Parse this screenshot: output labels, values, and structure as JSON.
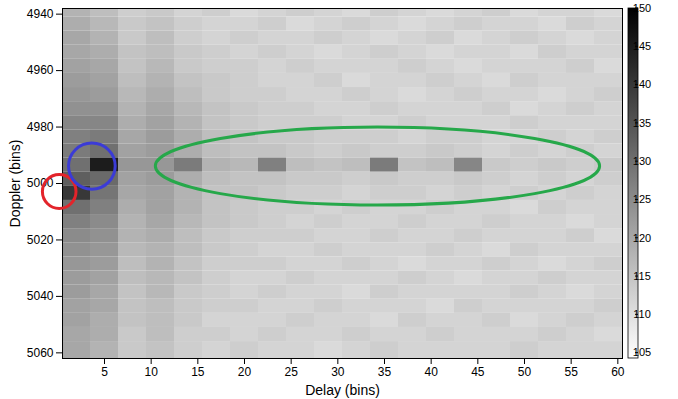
{
  "chart_data": {
    "type": "heatmap",
    "x_label": "Delay (bins)",
    "y_label": "Doppler (bins)",
    "xlim": [
      0.5,
      60.5
    ],
    "xticks": [
      5,
      10,
      15,
      20,
      25,
      30,
      35,
      40,
      45,
      50,
      55,
      60
    ],
    "ylim": [
      4938,
      5062
    ],
    "yticks": [
      4940,
      4960,
      4980,
      5000,
      5020,
      5040,
      5060
    ],
    "x_edges": [
      0.5,
      3.5,
      6.5,
      9.5,
      12.5,
      15.5,
      18.5,
      21.5,
      24.5,
      27.5,
      30.5,
      33.5,
      36.5,
      39.5,
      42.5,
      45.5,
      48.5,
      51.5,
      54.5,
      57.5,
      60.5
    ],
    "y_edges": [
      4938,
      4941,
      4946,
      4951,
      4956,
      4961,
      4966,
      4971,
      4976,
      4981,
      4986,
      4991,
      4996,
      5001,
      5006,
      5011,
      5016,
      5021,
      5026,
      5031,
      5036,
      5041,
      5046,
      5051,
      5056,
      5062
    ],
    "cells": [
      [
        118,
        116,
        113,
        114,
        112,
        113,
        111,
        112,
        113,
        112,
        111,
        113,
        112,
        111,
        112,
        113,
        111,
        112,
        112,
        111
      ],
      [
        119,
        117,
        114,
        115,
        113,
        112,
        112,
        113,
        111,
        112,
        113,
        112,
        111,
        112,
        113,
        112,
        112,
        111,
        113,
        112
      ],
      [
        120,
        118,
        114,
        116,
        113,
        112,
        113,
        112,
        112,
        113,
        112,
        111,
        112,
        113,
        111,
        112,
        113,
        112,
        111,
        112
      ],
      [
        120,
        119,
        115,
        116,
        114,
        113,
        112,
        113,
        112,
        111,
        112,
        113,
        112,
        111,
        112,
        112,
        111,
        113,
        112,
        112
      ],
      [
        121,
        120,
        115,
        117,
        114,
        113,
        113,
        112,
        113,
        112,
        112,
        112,
        113,
        112,
        111,
        112,
        112,
        112,
        113,
        111
      ],
      [
        122,
        121,
        116,
        118,
        115,
        114,
        113,
        112,
        112,
        113,
        111,
        112,
        112,
        113,
        112,
        111,
        113,
        112,
        112,
        112
      ],
      [
        123,
        122,
        117,
        119,
        116,
        114,
        113,
        113,
        112,
        112,
        113,
        112,
        111,
        112,
        113,
        112,
        112,
        111,
        112,
        113
      ],
      [
        124,
        124,
        118,
        120,
        117,
        115,
        114,
        113,
        113,
        112,
        112,
        113,
        112,
        112,
        112,
        113,
        111,
        112,
        113,
        112
      ],
      [
        126,
        126,
        119,
        121,
        118,
        115,
        114,
        113,
        113,
        113,
        112,
        112,
        113,
        112,
        112,
        112,
        113,
        112,
        112,
        112
      ],
      [
        127,
        128,
        120,
        122,
        119,
        116,
        115,
        114,
        114,
        113,
        113,
        113,
        112,
        113,
        113,
        112,
        112,
        113,
        112,
        113
      ],
      [
        128,
        130,
        121,
        122,
        119,
        116,
        115,
        115,
        114,
        113,
        114,
        113,
        113,
        114,
        113,
        112,
        113,
        112,
        113,
        112
      ],
      [
        130,
        145,
        123,
        123,
        128,
        118,
        117,
        127,
        116,
        115,
        116,
        128,
        115,
        116,
        126,
        114,
        113,
        114,
        113,
        114
      ],
      [
        133,
        131,
        121,
        122,
        119,
        116,
        115,
        115,
        114,
        114,
        113,
        114,
        113,
        113,
        114,
        113,
        112,
        113,
        112,
        113
      ],
      [
        140,
        129,
        120,
        121,
        118,
        115,
        115,
        114,
        113,
        113,
        112,
        113,
        113,
        112,
        113,
        112,
        113,
        112,
        113,
        112
      ],
      [
        130,
        127,
        119,
        121,
        118,
        115,
        114,
        113,
        113,
        112,
        113,
        112,
        112,
        113,
        112,
        112,
        111,
        113,
        112,
        112
      ],
      [
        127,
        125,
        118,
        120,
        117,
        115,
        114,
        113,
        112,
        113,
        112,
        112,
        113,
        112,
        112,
        113,
        112,
        112,
        111,
        112
      ],
      [
        125,
        124,
        118,
        119,
        116,
        114,
        113,
        113,
        113,
        112,
        112,
        113,
        112,
        112,
        113,
        112,
        112,
        112,
        113,
        111
      ],
      [
        124,
        123,
        117,
        118,
        116,
        114,
        113,
        112,
        112,
        113,
        112,
        112,
        112,
        113,
        112,
        111,
        113,
        112,
        112,
        112
      ],
      [
        123,
        122,
        116,
        118,
        115,
        113,
        113,
        113,
        112,
        112,
        113,
        112,
        111,
        112,
        112,
        113,
        112,
        111,
        112,
        113
      ],
      [
        122,
        121,
        116,
        117,
        115,
        113,
        112,
        112,
        113,
        112,
        112,
        112,
        113,
        112,
        111,
        112,
        112,
        113,
        112,
        112
      ],
      [
        122,
        120,
        115,
        117,
        114,
        113,
        112,
        113,
        112,
        112,
        111,
        113,
        112,
        112,
        112,
        112,
        113,
        112,
        111,
        112
      ],
      [
        121,
        120,
        115,
        116,
        114,
        113,
        113,
        112,
        112,
        113,
        112,
        112,
        112,
        111,
        113,
        112,
        112,
        112,
        112,
        113
      ],
      [
        121,
        119,
        115,
        116,
        114,
        112,
        112,
        112,
        113,
        112,
        112,
        111,
        113,
        112,
        112,
        113,
        111,
        112,
        113,
        112
      ],
      [
        120,
        119,
        114,
        116,
        113,
        113,
        112,
        113,
        112,
        112,
        113,
        112,
        112,
        113,
        112,
        112,
        112,
        113,
        112,
        111
      ],
      [
        120,
        118,
        114,
        115,
        113,
        112,
        113,
        112,
        112,
        111,
        112,
        113,
        112,
        112,
        112,
        112,
        113,
        112,
        112,
        112
      ]
    ],
    "colorbar": {
      "range": [
        104.3,
        150
      ],
      "ticks": [
        105,
        110,
        115,
        120,
        125,
        130,
        135,
        140,
        145,
        150
      ]
    },
    "annotations": [
      {
        "shape": "ellipse",
        "color": "#e3242b",
        "x": 0.2,
        "y": 5003,
        "rx": 1.8,
        "ry": 6
      },
      {
        "shape": "ellipse",
        "color": "#3b3bd6",
        "x": 3.7,
        "y": 4994,
        "rx": 2.5,
        "ry": 8.2
      },
      {
        "shape": "ellipse",
        "color": "#26a84a",
        "x": 34.3,
        "y": 4994,
        "rx": 23.8,
        "ry": 13.8
      }
    ]
  }
}
